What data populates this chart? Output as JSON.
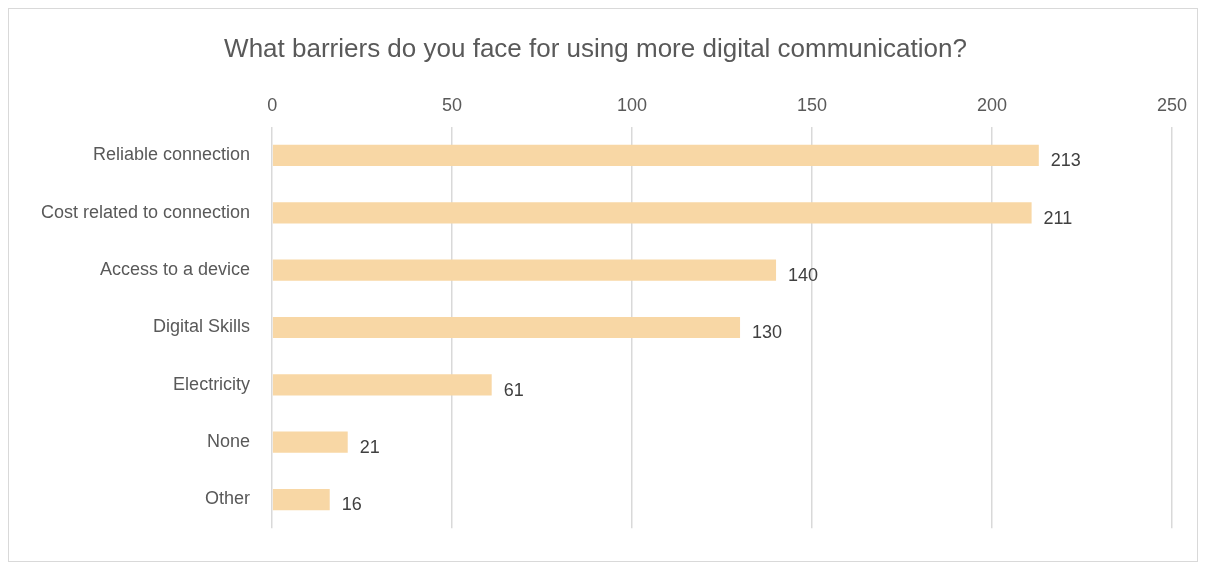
{
  "chart_data": {
    "type": "bar",
    "orientation": "horizontal",
    "title": "What barriers do you face for using more digital communication?",
    "categories": [
      "Reliable connection",
      "Cost related to connection",
      "Access to a device",
      "Digital Skills",
      "Electricity",
      "None",
      "Other"
    ],
    "values": [
      213,
      211,
      140,
      130,
      61,
      21,
      16
    ],
    "color": "#f8d7a5",
    "xlim": [
      0,
      250
    ],
    "xticks": [
      0,
      50,
      100,
      150,
      200,
      250
    ],
    "grid": "x",
    "data_labels": true,
    "legend": false
  }
}
